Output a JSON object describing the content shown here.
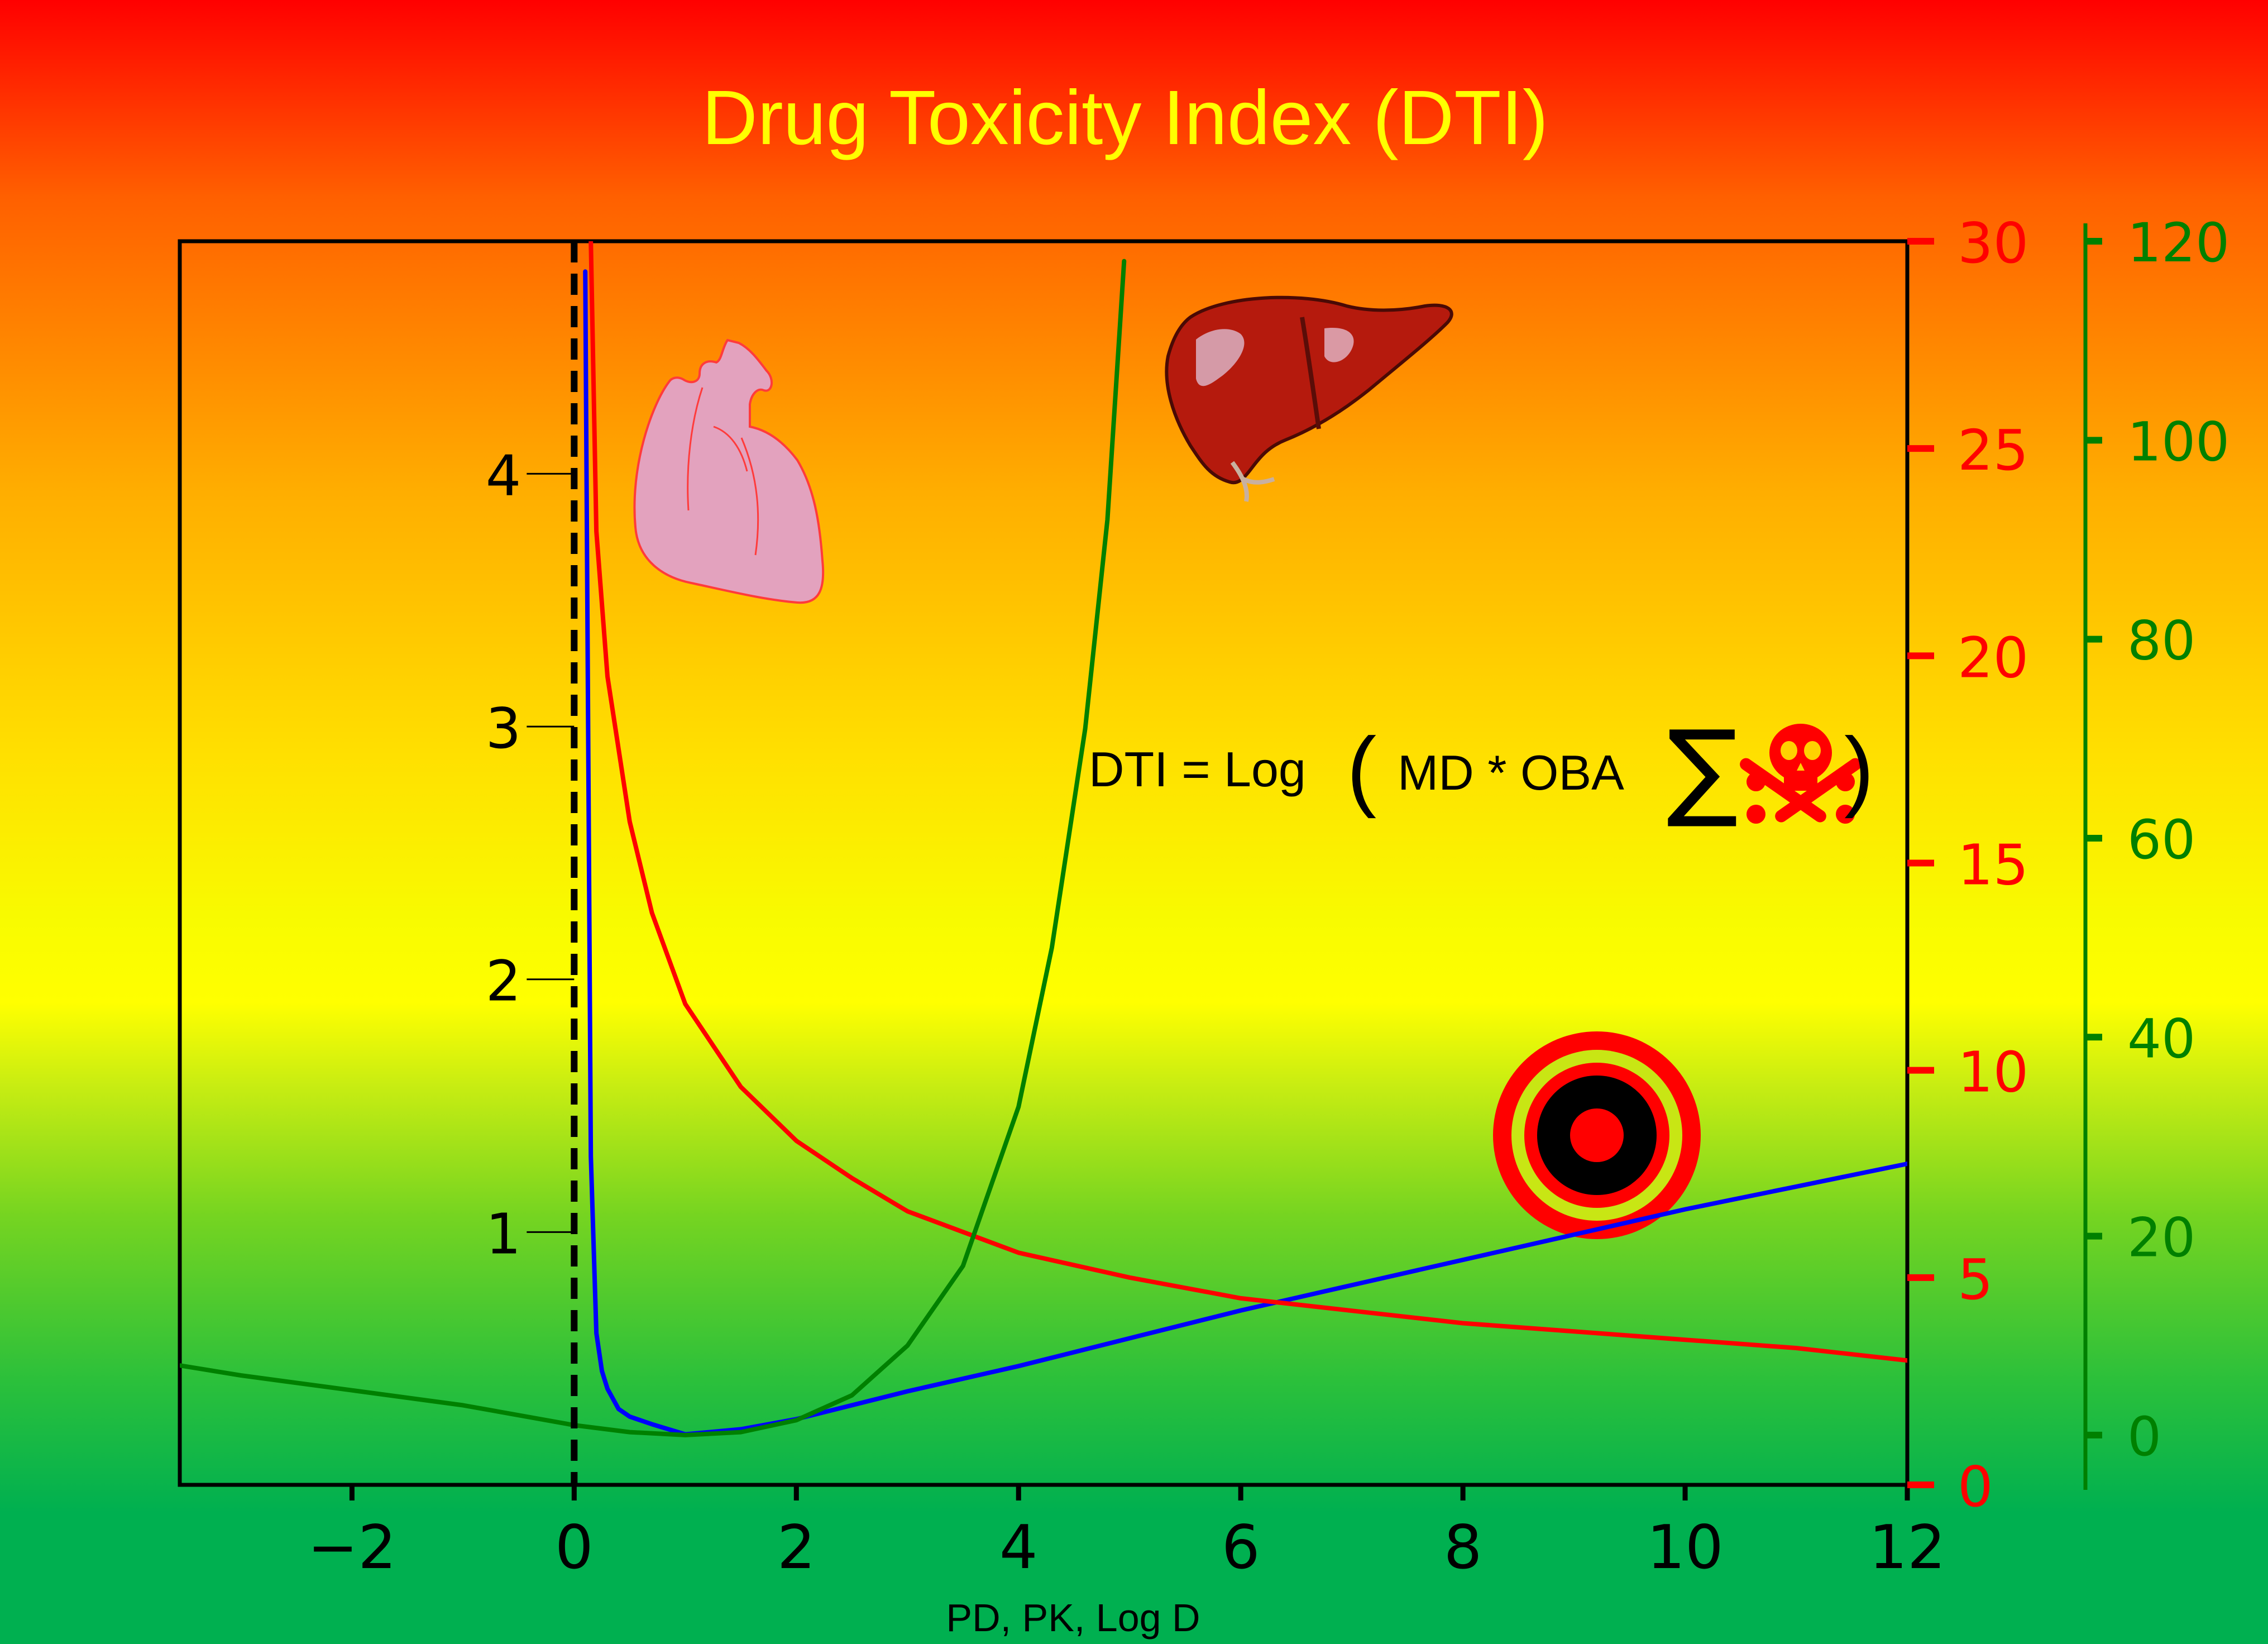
{
  "chart_data": {
    "type": "line",
    "title": "Drug Toxicity Index (DTI)",
    "xlabel": "PD, PK, Log D",
    "xlim": [
      -3.55,
      12
    ],
    "x_ticks": [
      {
        "value": -2,
        "label": "−2"
      },
      {
        "value": 0,
        "label": "0"
      },
      {
        "value": 2,
        "label": "2"
      },
      {
        "value": 4,
        "label": "4"
      },
      {
        "value": 6,
        "label": "6"
      },
      {
        "value": 8,
        "label": "8"
      },
      {
        "value": 10,
        "label": "10"
      },
      {
        "value": 12,
        "label": "12"
      }
    ],
    "axes": {
      "left": {
        "range": [
          0,
          4.92
        ],
        "ticks": [
          1,
          2,
          3,
          4
        ],
        "color": "#000000"
      },
      "right_red": {
        "range": [
          0,
          30
        ],
        "ticks": [
          0,
          5,
          10,
          15,
          20,
          25,
          30
        ],
        "color": "#ff0000"
      },
      "right_green": {
        "range": [
          -5,
          120
        ],
        "ticks": [
          0,
          20,
          40,
          60,
          80,
          100,
          120
        ],
        "color": "#008000"
      }
    },
    "series": [
      {
        "axis": "left",
        "color": "#0000ff",
        "x": [
          0.1,
          0.15,
          0.2,
          0.25,
          0.3,
          0.4,
          0.5,
          0.7,
          1.0,
          1.5,
          2.0,
          3.0,
          4.0,
          5.0,
          6.0,
          7.0,
          8.0,
          9.0,
          10.0,
          11.0,
          12.0
        ],
        "y": [
          4.8,
          1.3,
          0.6,
          0.45,
          0.38,
          0.3,
          0.27,
          0.24,
          0.2,
          0.22,
          0.26,
          0.37,
          0.47,
          0.58,
          0.69,
          0.79,
          0.89,
          0.99,
          1.09,
          1.18,
          1.27
        ]
      },
      {
        "axis": "right_red",
        "color": "#ff0000",
        "x": [
          0.15,
          0.2,
          0.3,
          0.5,
          0.7,
          1.0,
          1.5,
          2.0,
          2.5,
          3.0,
          4.0,
          5.0,
          6.0,
          7.0,
          8.0,
          9.0,
          10.0,
          11.0,
          12.0
        ],
        "y": [
          30.0,
          23.0,
          19.5,
          16.0,
          13.8,
          11.6,
          9.6,
          8.3,
          7.4,
          6.6,
          5.6,
          5.0,
          4.5,
          4.2,
          3.9,
          3.7,
          3.5,
          3.3,
          3.0
        ]
      },
      {
        "axis": "right_green",
        "color": "#008000",
        "x": [
          -3.55,
          -3.0,
          -2.0,
          -1.0,
          0.0,
          0.5,
          1.0,
          1.5,
          2.0,
          2.5,
          3.0,
          3.5,
          4.0,
          4.3,
          4.6,
          4.8,
          4.95
        ],
        "y": [
          7.0,
          6.0,
          4.5,
          3.0,
          1.0,
          0.3,
          0.0,
          0.3,
          1.5,
          4.0,
          9.0,
          17.0,
          33.0,
          49.0,
          71.0,
          92.0,
          118.0
        ]
      }
    ],
    "vertical_line": {
      "x": 0,
      "style": "dashed",
      "color": "#000000"
    },
    "annotations": {
      "formula": {
        "prefix": "DTI = Log",
        "open_paren": "(",
        "middle": "MD * OBA",
        "sigma": "∑",
        "close_paren": ")"
      },
      "icons": [
        "heart-icon",
        "liver-icon",
        "skull-crossbones-icon",
        "target-icon"
      ]
    }
  }
}
